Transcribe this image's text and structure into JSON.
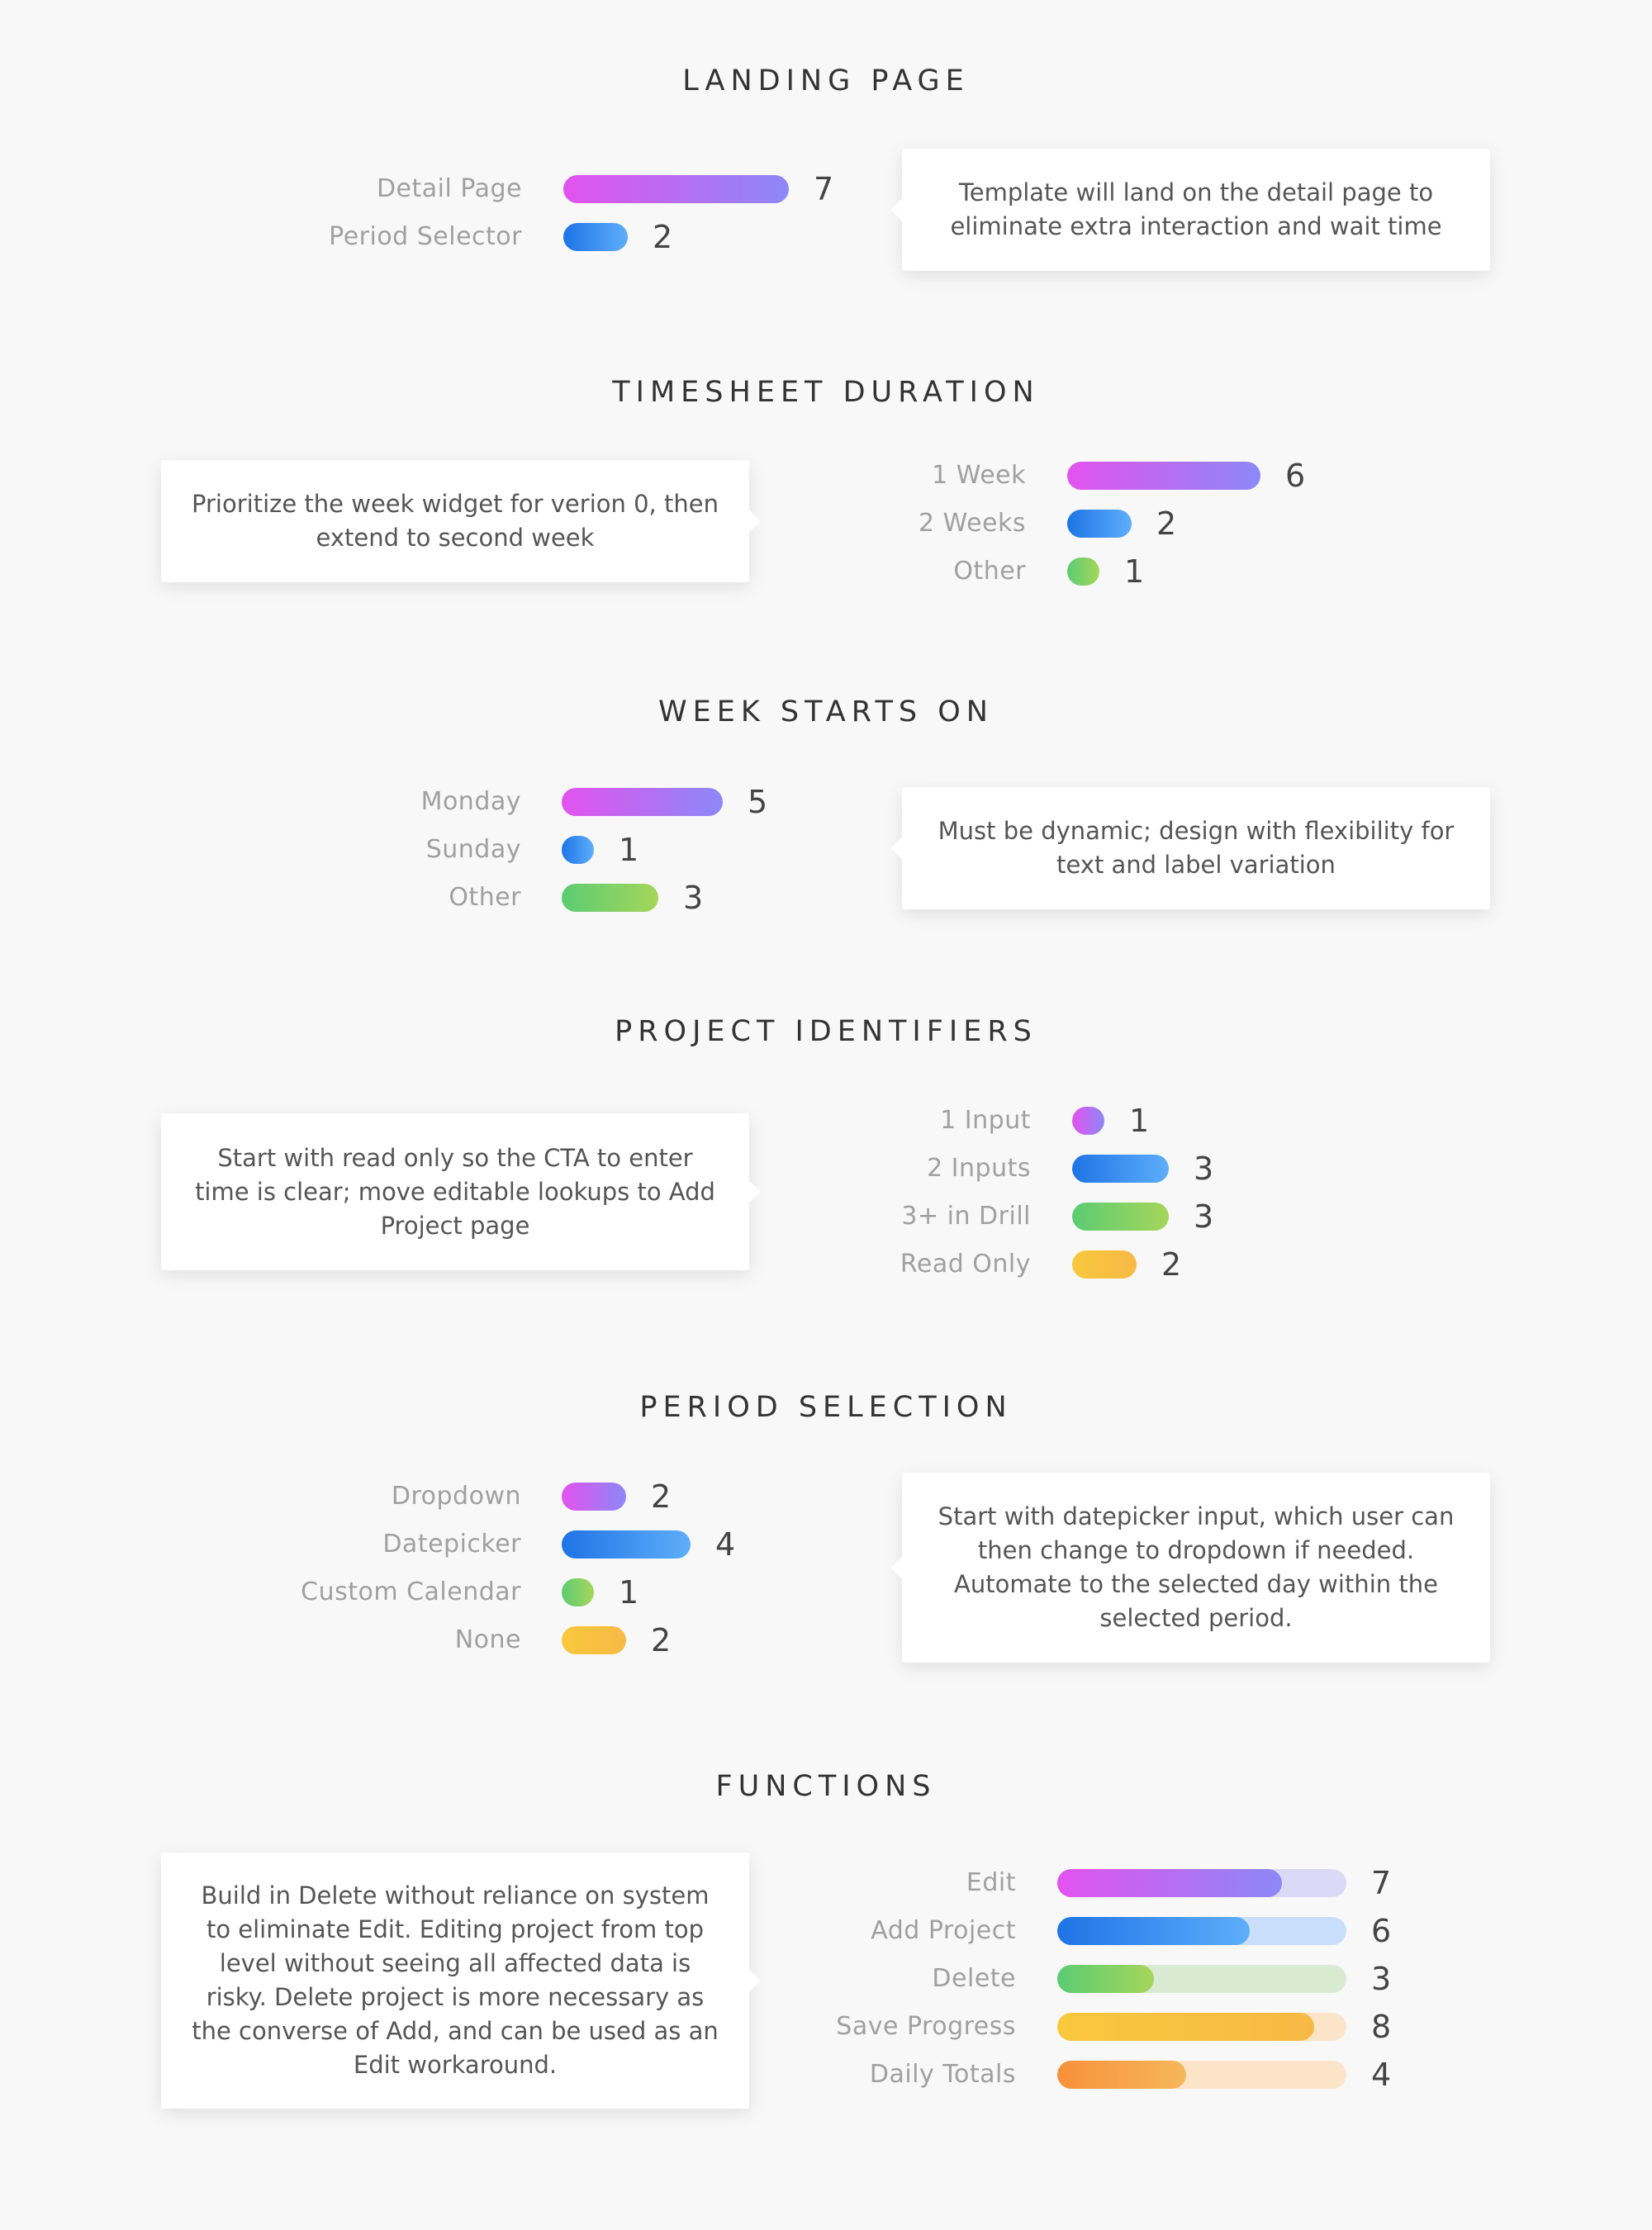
{
  "sections": [
    {
      "title": "LANDING PAGE",
      "note": "Template will land on the detail page to eliminate extra interaction and wait time"
    },
    {
      "title": "TIMESHEET DURATION",
      "note": "Prioritize the week widget for verion 0, then extend to second week"
    },
    {
      "title": "WEEK STARTS ON",
      "note": "Must be dynamic; design with flexibility for text and label variation"
    },
    {
      "title": "PROJECT IDENTIFIERS",
      "note": "Start with read only so the CTA to enter time is clear; move editable lookups to Add Project page"
    },
    {
      "title": "PERIOD SELECTION",
      "note": "Start with datepicker input, which user can then change to dropdown if needed. Automate to the selected day within the selected period."
    },
    {
      "title": "FUNCTIONS",
      "note": "Build in Delete without reliance on system to eliminate Edit. Editing project from top level without seeing all affected data is risky. Delete project is more necessary as the converse of Add, and can be used as an Edit workaround."
    }
  ],
  "chart_data": [
    {
      "type": "bar",
      "title": "LANDING PAGE",
      "categories": [
        "Detail Page",
        "Period Selector"
      ],
      "values": [
        7,
        2
      ],
      "colors": [
        "pink",
        "blue"
      ]
    },
    {
      "type": "bar",
      "title": "TIMESHEET DURATION",
      "categories": [
        "1 Week",
        "2 Weeks",
        "Other"
      ],
      "values": [
        6,
        2,
        1
      ],
      "colors": [
        "pink",
        "blue",
        "green"
      ]
    },
    {
      "type": "bar",
      "title": "WEEK STARTS ON",
      "categories": [
        "Monday",
        "Sunday",
        "Other"
      ],
      "values": [
        5,
        1,
        3
      ],
      "colors": [
        "pink",
        "blue",
        "green"
      ]
    },
    {
      "type": "bar",
      "title": "PROJECT IDENTIFIERS",
      "categories": [
        "1 Input",
        "2 Inputs",
        "3+ in Drill",
        "Read Only"
      ],
      "values": [
        1,
        3,
        3,
        2
      ],
      "colors": [
        "pink",
        "blue",
        "green",
        "yellow"
      ]
    },
    {
      "type": "bar",
      "title": "PERIOD SELECTION",
      "categories": [
        "Dropdown",
        "Datepicker",
        "Custom Calendar",
        "None"
      ],
      "values": [
        2,
        4,
        1,
        2
      ],
      "colors": [
        "pink",
        "blue",
        "green",
        "yellow"
      ]
    },
    {
      "type": "bar",
      "title": "FUNCTIONS",
      "categories": [
        "Edit",
        "Add Project",
        "Delete",
        "Save Progress",
        "Daily Totals"
      ],
      "values": [
        7,
        6,
        3,
        8,
        4
      ],
      "xlim": [
        0,
        9
      ],
      "colors": [
        "pink",
        "blue",
        "green",
        "yellow",
        "orange"
      ]
    }
  ],
  "palette": {
    "pink": [
      "#e352ef",
      "#8c88f7"
    ],
    "blue": [
      "#1e74e5",
      "#5eaefb"
    ],
    "green": [
      "#5ccc73",
      "#a5d65a"
    ],
    "yellow": [
      "#f9c83d",
      "#f7b945"
    ],
    "orange": [
      "#f7913a",
      "#f7b75b"
    ]
  }
}
